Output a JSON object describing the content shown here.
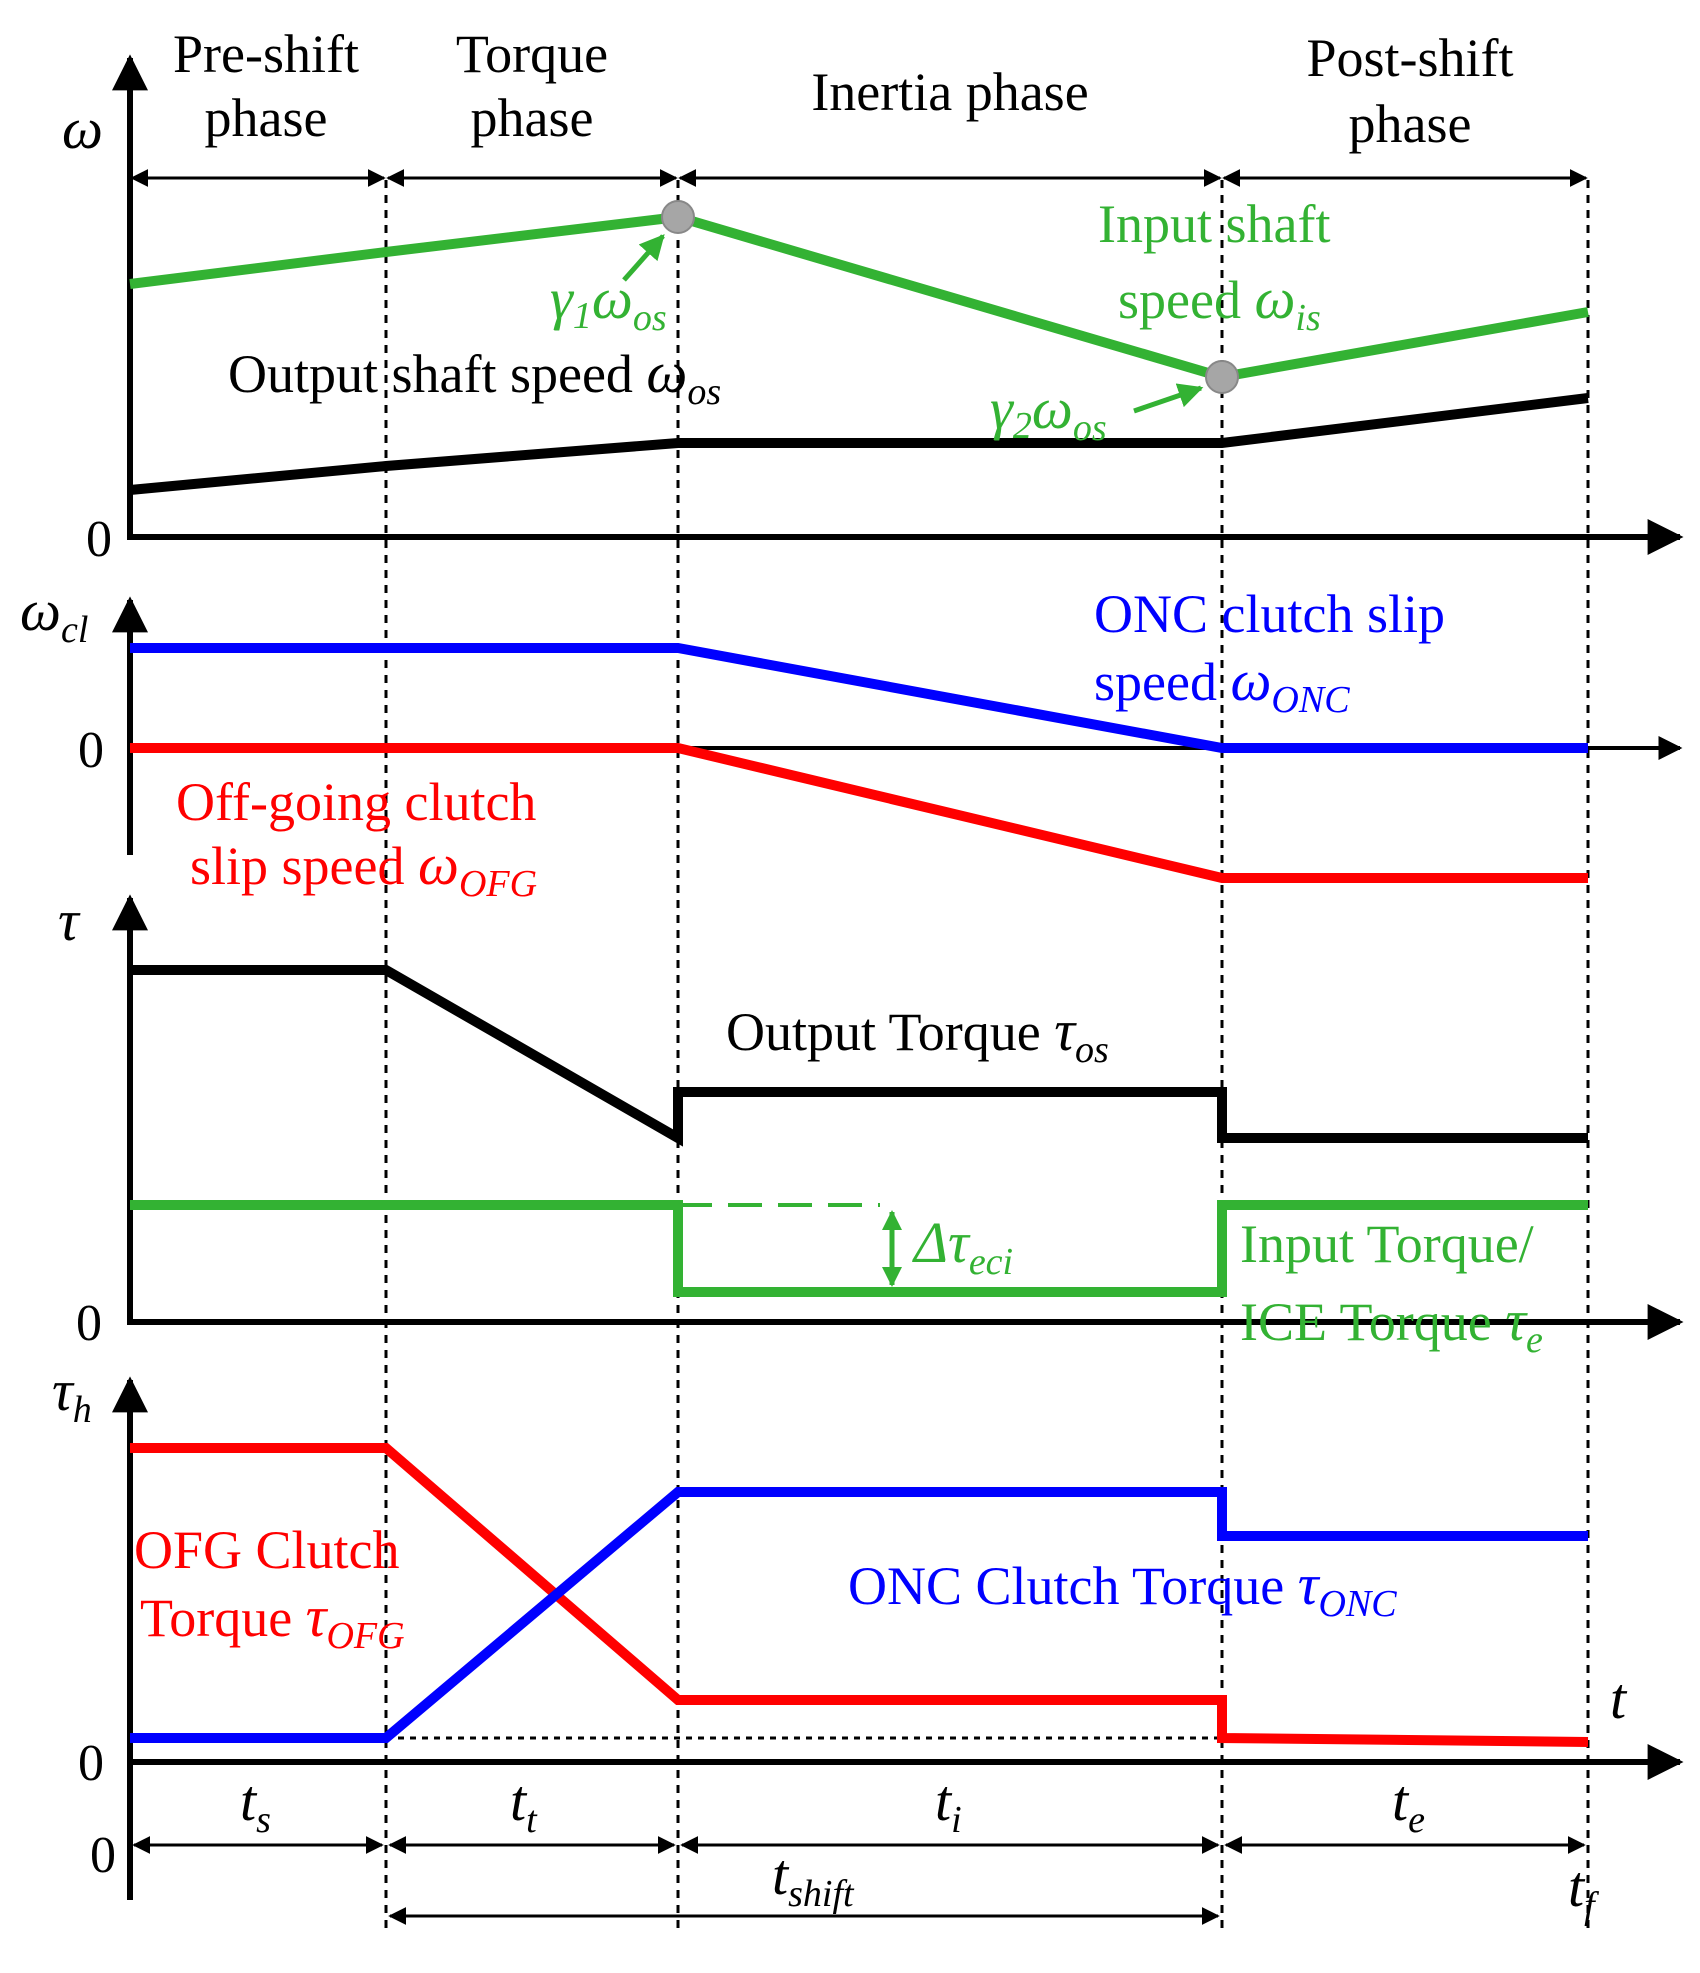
{
  "colors": {
    "green": "#33b233",
    "blue": "#0000ff",
    "red": "#ff0000",
    "black": "#000000",
    "marker": "#a6a6a6"
  },
  "phases": {
    "pre_shift": [
      "Pre-shift",
      "phase"
    ],
    "torque": [
      "Torque",
      "phase"
    ],
    "inertia": "Inertia phase",
    "post_shift": [
      "Post-shift",
      "phase"
    ]
  },
  "speed_panel": {
    "y_axis": "ω",
    "zero": "0",
    "input_shaft": {
      "line1": "Input shaft",
      "line2": "speed ",
      "symbol": "ω",
      "sub": "is"
    },
    "gamma1": {
      "gamma": "γ",
      "gsub": "1",
      "omega": "ω",
      "osub": "os"
    },
    "gamma2": {
      "gamma": "γ",
      "gsub": "2",
      "omega": "ω",
      "osub": "os"
    },
    "output_shaft": {
      "text": "Output shaft speed ",
      "symbol": "ω",
      "sub": "os"
    }
  },
  "slip_panel": {
    "y_axis": "ω",
    "y_axis_sub": "cl",
    "zero": "0",
    "onc": {
      "line1": "ONC clutch slip",
      "line2": "speed ",
      "symbol": "ω",
      "sub": "ONC"
    },
    "ofg": {
      "line1": "Off-going clutch",
      "line2": "slip speed ",
      "symbol": "ω",
      "sub": "OFG"
    }
  },
  "torque_panel": {
    "y_axis": "τ",
    "zero": "0",
    "output": {
      "text": "Output Torque ",
      "symbol": "τ",
      "sub": "os"
    },
    "delta": {
      "symbol": "Δτ",
      "sub": "eci"
    },
    "input": {
      "line1": "Input Torque/",
      "line2": "ICE Torque ",
      "symbol": "τ",
      "sub": "e"
    }
  },
  "clutch_panel": {
    "y_axis": "τ",
    "y_axis_sub": "h",
    "zero": "0",
    "t_axis": "t",
    "ofg": {
      "line1": "OFG Clutch",
      "line2": "Torque ",
      "symbol": "τ",
      "sub": "OFG"
    },
    "onc": {
      "text": "ONC Clutch Torque ",
      "symbol": "τ",
      "sub": "ONC"
    }
  },
  "durations": {
    "zero": "0",
    "ts": {
      "symbol": "t",
      "sub": "s"
    },
    "tt": {
      "symbol": "t",
      "sub": "t"
    },
    "ti": {
      "symbol": "t",
      "sub": "i"
    },
    "te": {
      "symbol": "t",
      "sub": "e"
    },
    "tshift": {
      "symbol": "t",
      "sub": "shift"
    },
    "tf": {
      "symbol": "t",
      "sub": "f"
    }
  }
}
